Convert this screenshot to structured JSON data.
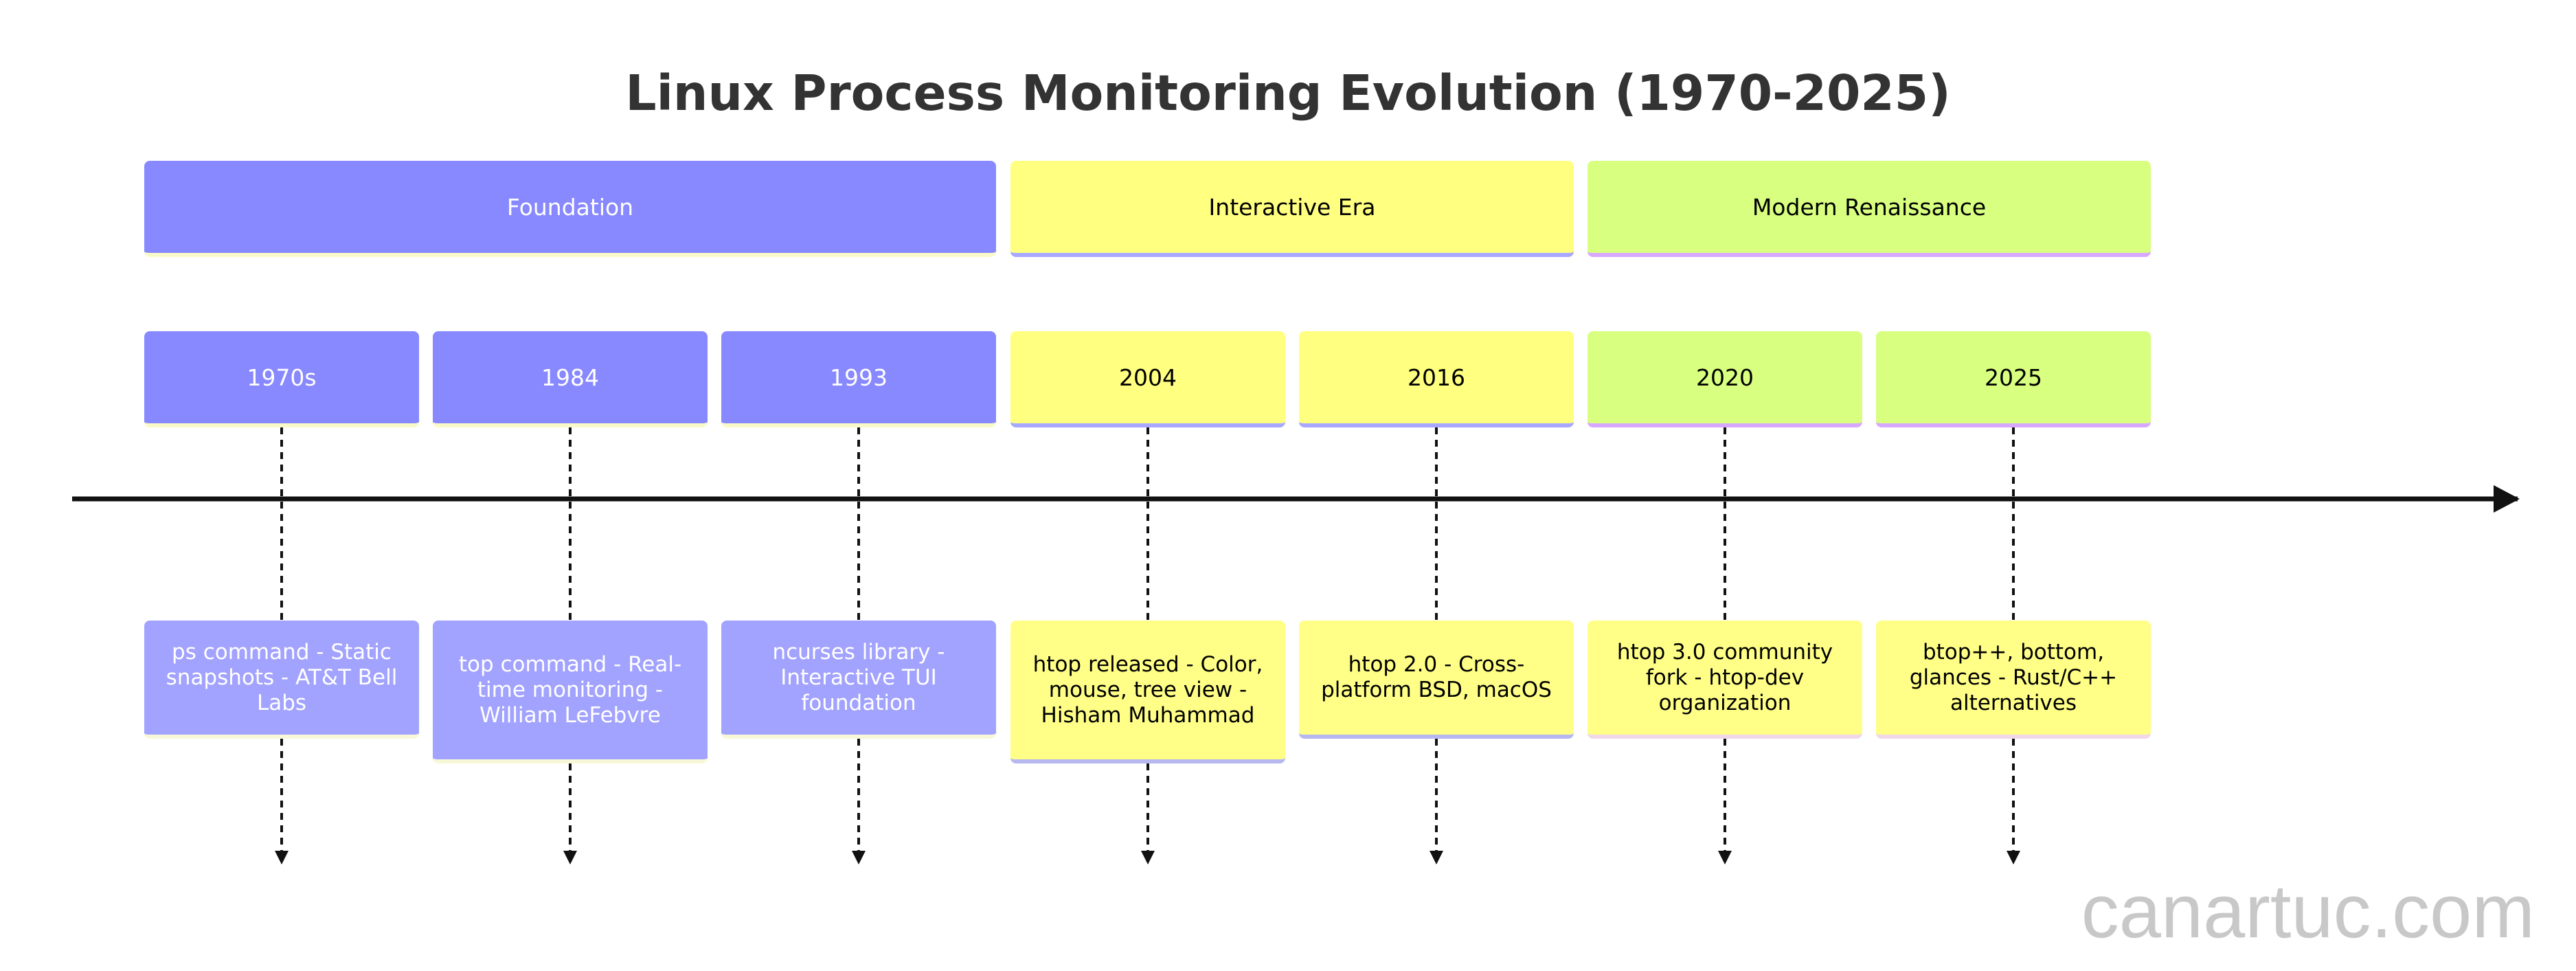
{
  "title": "Linux Process Monitoring Evolution (1970-2025)",
  "sections": [
    {
      "label": "Foundation"
    },
    {
      "label": "Interactive Era"
    },
    {
      "label": "Modern Renaissance"
    }
  ],
  "periods": [
    {
      "label": "1970s",
      "event": "ps command - Static snapshots - AT&T Bell Labs"
    },
    {
      "label": "1984",
      "event": "top command - Real-time monitoring - William LeFebvre"
    },
    {
      "label": "1993",
      "event": "ncurses library - Interactive TUI foundation"
    },
    {
      "label": "2004",
      "event": "htop released - Color, mouse, tree view - Hisham Muhammad"
    },
    {
      "label": "2016",
      "event": "htop 2.0 - Cross-platform BSD, macOS"
    },
    {
      "label": "2020",
      "event": "htop 3.0 community fork - htop-dev organization"
    },
    {
      "label": "2025",
      "event": "btop++, bottom, glances - Rust/C++ alternatives"
    }
  ],
  "watermark": "canartuc.com",
  "colors": {
    "foundation": "#8888ff",
    "interactive": "#ffff80",
    "modern": "#d8ff80",
    "axis": "#111111"
  }
}
